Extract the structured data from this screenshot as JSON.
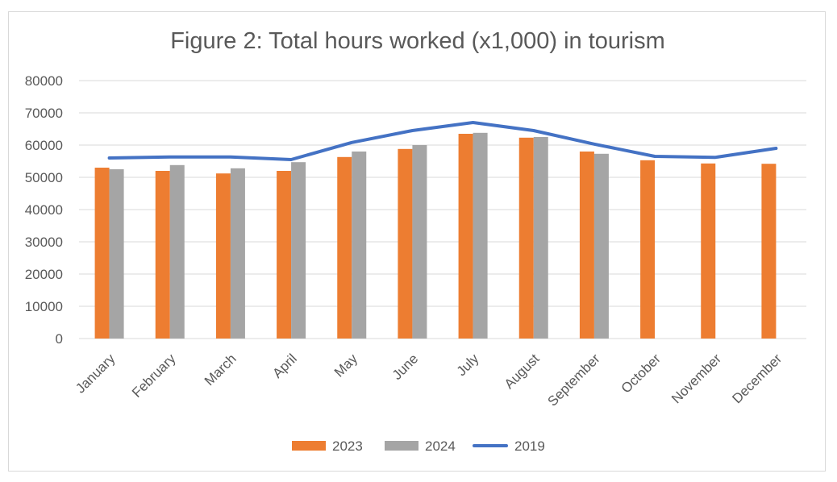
{
  "chart_data": {
    "type": "bar",
    "title": "Figure 2: Total hours worked (x1,000) in tourism",
    "xlabel": "",
    "ylabel": "",
    "categories": [
      "January",
      "February",
      "March",
      "April",
      "May",
      "June",
      "July",
      "August",
      "September",
      "October",
      "November",
      "December"
    ],
    "yticks": [
      "0",
      "10000",
      "20000",
      "30000",
      "40000",
      "50000",
      "60000",
      "70000",
      "80000"
    ],
    "ylim": [
      0,
      80000
    ],
    "grid": true,
    "legend_position": "bottom",
    "series": [
      {
        "name": "2023",
        "type": "bar",
        "color": "#ed7d31",
        "values": [
          53000,
          52000,
          51200,
          52000,
          56300,
          58800,
          63500,
          62300,
          58000,
          55300,
          54300,
          54200
        ]
      },
      {
        "name": "2024",
        "type": "bar",
        "color": "#a5a5a5",
        "values": [
          52500,
          53800,
          52800,
          54700,
          58000,
          60000,
          63800,
          62500,
          57300,
          null,
          null,
          null
        ]
      },
      {
        "name": "2019",
        "type": "line",
        "color": "#4472c4",
        "values": [
          56000,
          56300,
          56300,
          55500,
          60800,
          64500,
          67000,
          64500,
          60300,
          56500,
          56200,
          59000
        ]
      }
    ]
  }
}
